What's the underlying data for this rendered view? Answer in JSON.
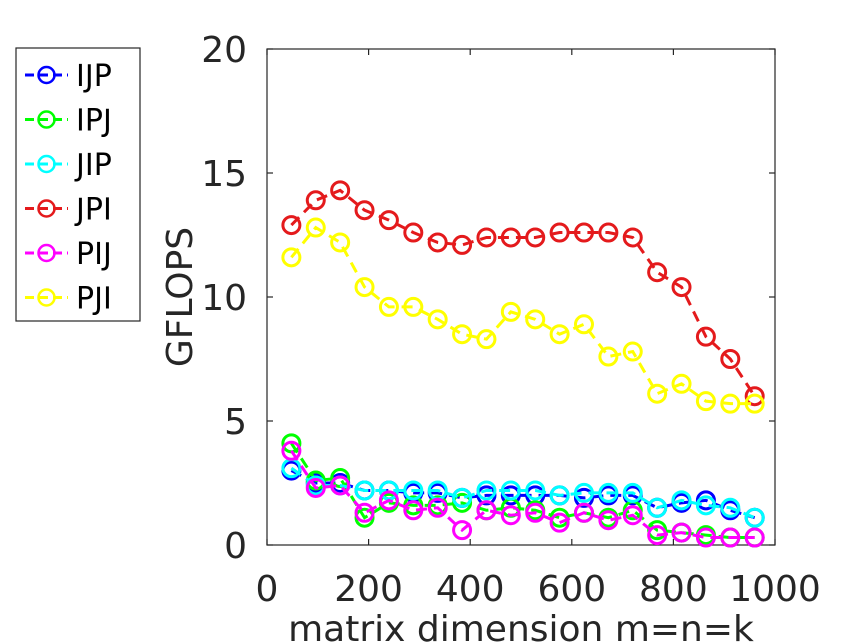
{
  "chart_data": {
    "type": "line",
    "xlabel": "matrix dimension m=n=k",
    "ylabel": "GFLOPS",
    "xlim": [
      0,
      1000
    ],
    "ylim": [
      0,
      20
    ],
    "xticks": [
      0,
      200,
      400,
      600,
      800,
      1000
    ],
    "yticks": [
      0,
      5,
      10,
      15,
      20
    ],
    "grid": false,
    "legend_position": "left",
    "x": [
      48,
      96,
      144,
      192,
      240,
      288,
      336,
      384,
      432,
      480,
      528,
      576,
      624,
      672,
      720,
      768,
      816,
      864,
      912,
      960
    ],
    "series": [
      {
        "name": "IJP",
        "color": "#0000ff",
        "values": [
          3.0,
          2.5,
          2.5,
          2.2,
          2.2,
          2.1,
          2.1,
          1.9,
          2.0,
          2.0,
          2.0,
          2.0,
          1.9,
          2.0,
          2.0,
          1.5,
          1.7,
          1.8,
          1.4,
          1.1
        ]
      },
      {
        "name": "IPJ",
        "color": "#00ff00",
        "values": [
          4.1,
          2.6,
          2.7,
          1.1,
          1.7,
          1.6,
          1.6,
          1.7,
          1.4,
          1.5,
          1.4,
          1.1,
          1.3,
          1.1,
          1.4,
          0.6,
          0.5,
          0.4,
          0.3,
          0.3
        ]
      },
      {
        "name": "JIP",
        "color": "#00ffff",
        "values": [
          3.1,
          2.4,
          2.4,
          2.2,
          2.2,
          2.2,
          2.2,
          1.9,
          2.2,
          2.2,
          2.2,
          2.0,
          2.1,
          2.1,
          2.1,
          1.5,
          1.8,
          1.6,
          1.5,
          1.1
        ]
      },
      {
        "name": "JPI",
        "color": "#e41a1c",
        "values": [
          12.9,
          13.9,
          14.3,
          13.5,
          13.1,
          12.6,
          12.2,
          12.1,
          12.4,
          12.4,
          12.4,
          12.6,
          12.6,
          12.6,
          12.4,
          11.0,
          10.4,
          8.4,
          7.5,
          6.0
        ]
      },
      {
        "name": "PIJ",
        "color": "#ff00ff",
        "values": [
          3.8,
          2.3,
          2.4,
          1.3,
          1.8,
          1.4,
          1.5,
          0.6,
          1.4,
          1.2,
          1.3,
          0.9,
          1.3,
          1.0,
          1.2,
          0.4,
          0.5,
          0.3,
          0.3,
          0.3
        ]
      },
      {
        "name": "PJI",
        "color": "#ffff00",
        "values": [
          11.6,
          12.8,
          12.2,
          10.4,
          9.6,
          9.6,
          9.1,
          8.5,
          8.3,
          9.4,
          9.1,
          8.5,
          8.9,
          7.6,
          7.8,
          6.1,
          6.5,
          5.8,
          5.7,
          5.7
        ]
      }
    ]
  }
}
